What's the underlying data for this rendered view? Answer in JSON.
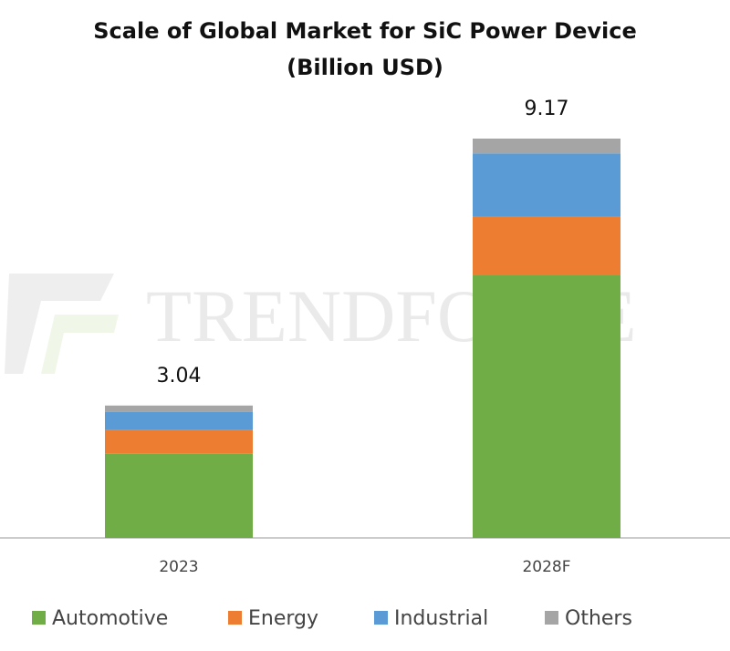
{
  "chart_data": {
    "type": "stacked_bar",
    "title": "Scale of Global Market for SiC Power Device",
    "subtitle": "(Billion USD)",
    "watermark": "TRENDFORCE",
    "categories": [
      "2023",
      "2028F"
    ],
    "series": [
      {
        "name": "Automotive",
        "color": "#70ad47",
        "values": [
          1.93,
          6.03
        ]
      },
      {
        "name": "Energy",
        "color": "#ed7d31",
        "values": [
          0.56,
          1.36
        ]
      },
      {
        "name": "Industrial",
        "color": "#5b9bd5",
        "values": [
          0.4,
          1.44
        ]
      },
      {
        "name": "Others",
        "color": "#a5a5a5",
        "values": [
          0.15,
          0.34
        ]
      }
    ],
    "totals": [
      3.04,
      9.17
    ],
    "legend": "bottom"
  }
}
